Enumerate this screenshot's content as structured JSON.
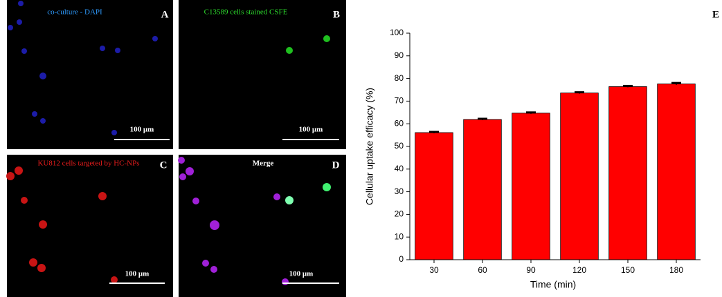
{
  "panels": [
    {
      "label": "A",
      "caption": "co-culture - DAPI",
      "scale_bar": "100 μm"
    },
    {
      "label": "B",
      "caption": "C13589 cells stained CSFE",
      "scale_bar": "100 μm"
    },
    {
      "label": "C",
      "caption": "KU812 cells targeted by HC-NPs",
      "scale_bar": "100 μm"
    },
    {
      "label": "D",
      "caption": "Merge",
      "scale_bar": "100 μm"
    }
  ],
  "chart_data": {
    "type": "bar",
    "panel_label": "E",
    "x_label": "Time (min)",
    "y_label": "Cellular uptake efficacy (%)",
    "categories": [
      "30",
      "60",
      "90",
      "120",
      "150",
      "180"
    ],
    "values": [
      56.1,
      61.9,
      64.7,
      73.6,
      76.4,
      77.6
    ],
    "errors": [
      0.3,
      0.3,
      0.3,
      0.3,
      0.3,
      0.4
    ],
    "color": "#ff0000",
    "ylim": [
      0,
      100
    ],
    "yticks": [
      0,
      10,
      20,
      30,
      40,
      50,
      60,
      70,
      80,
      90,
      100
    ]
  }
}
